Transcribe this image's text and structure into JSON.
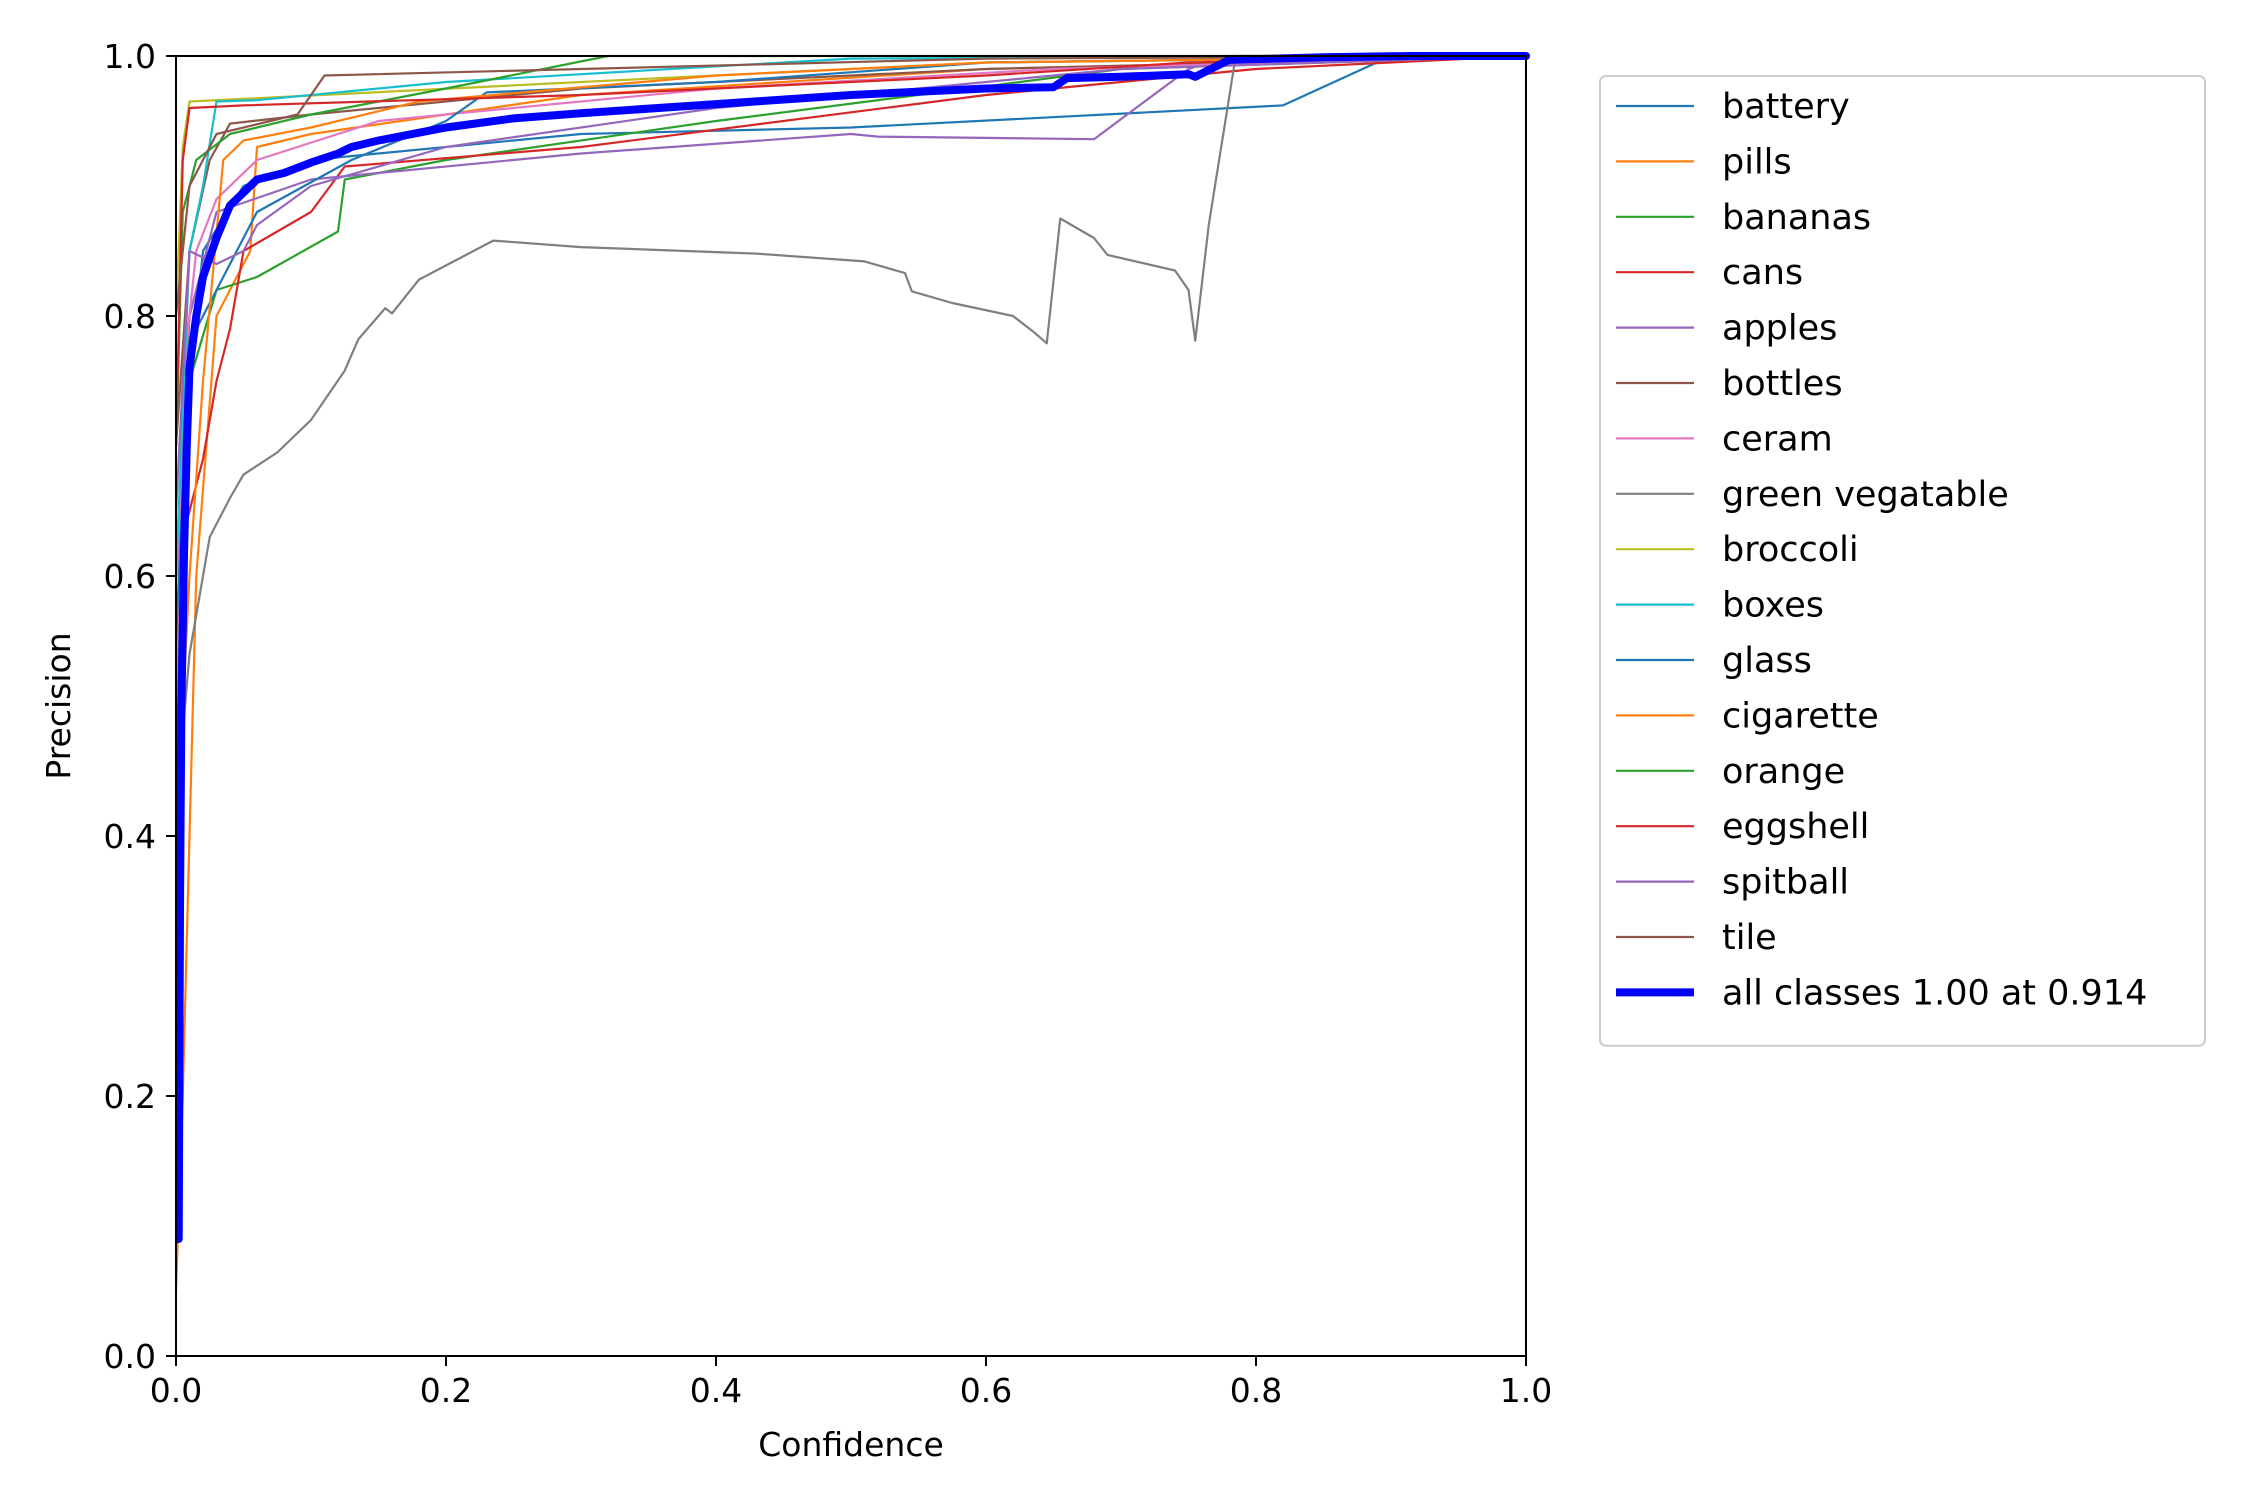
{
  "chart_data": {
    "type": "line",
    "title": "",
    "xlabel": "Confidence",
    "ylabel": "Precision",
    "xlim": [
      0,
      1
    ],
    "ylim": [
      0,
      1
    ],
    "xticks": [
      "0.0",
      "0.2",
      "0.4",
      "0.6",
      "0.8",
      "1.0"
    ],
    "yticks": [
      "0.0",
      "0.2",
      "0.4",
      "0.6",
      "0.8",
      "1.0"
    ],
    "grid": false,
    "legend_position": "outside-right",
    "series": [
      {
        "name": "battery",
        "color": "#1f77b4",
        "x": [
          0,
          0.005,
          0.01,
          0.02,
          0.05,
          0.1,
          0.3,
          0.5,
          0.82,
          0.9,
          1.0
        ],
        "y": [
          0.45,
          0.6,
          0.75,
          0.85,
          0.9,
          0.92,
          0.94,
          0.945,
          0.962,
          1.0,
          1.0
        ]
      },
      {
        "name": "pills",
        "color": "#ff7f0e",
        "x": [
          0,
          0.005,
          0.015,
          0.03,
          0.055,
          0.06,
          0.1,
          0.3,
          0.6,
          1.0
        ],
        "y": [
          0.05,
          0.2,
          0.6,
          0.8,
          0.85,
          0.93,
          0.94,
          0.97,
          0.99,
          1.0
        ]
      },
      {
        "name": "bananas",
        "color": "#2ca02c",
        "x": [
          0,
          0.01,
          0.03,
          0.06,
          0.12,
          0.125,
          0.2,
          0.4,
          0.7,
          1.0
        ],
        "y": [
          0.5,
          0.75,
          0.82,
          0.83,
          0.865,
          0.905,
          0.92,
          0.95,
          0.99,
          1.0
        ]
      },
      {
        "name": "cans",
        "color": "#d62728",
        "x": [
          0,
          0.005,
          0.02,
          0.03,
          0.04,
          0.05,
          0.1,
          0.125,
          0.3,
          0.6,
          0.8,
          1.0
        ],
        "y": [
          0.45,
          0.63,
          0.69,
          0.75,
          0.79,
          0.85,
          0.88,
          0.915,
          0.93,
          0.97,
          0.99,
          1.0
        ]
      },
      {
        "name": "apples",
        "color": "#9467bd",
        "x": [
          0,
          0.01,
          0.03,
          0.1,
          0.3,
          0.5,
          0.52,
          0.68,
          0.75,
          0.78,
          1.0
        ],
        "y": [
          0.6,
          0.8,
          0.88,
          0.905,
          0.925,
          0.94,
          0.938,
          0.936,
          0.99,
          1.0,
          1.0
        ]
      },
      {
        "name": "bottles",
        "color": "#8c564b",
        "x": [
          0,
          0.01,
          0.025,
          0.04,
          0.1,
          0.3,
          0.6,
          1.0
        ],
        "y": [
          0.7,
          0.85,
          0.92,
          0.948,
          0.955,
          0.975,
          0.99,
          1.0
        ]
      },
      {
        "name": "ceram",
        "color": "#e377c2",
        "x": [
          0,
          0.005,
          0.015,
          0.03,
          0.06,
          0.15,
          0.4,
          0.65,
          1.0
        ],
        "y": [
          0.5,
          0.75,
          0.85,
          0.89,
          0.92,
          0.95,
          0.975,
          0.99,
          1.0
        ]
      },
      {
        "name": "green vegatable",
        "color": "#7f7f7f",
        "x": [
          0,
          0.005,
          0.01,
          0.02,
          0.025,
          0.04,
          0.05,
          0.075,
          0.1,
          0.125,
          0.135,
          0.155,
          0.16,
          0.18,
          0.235,
          0.3,
          0.43,
          0.51,
          0.54,
          0.545,
          0.575,
          0.62,
          0.635,
          0.645,
          0.655,
          0.68,
          0.69,
          0.74,
          0.75,
          0.755,
          0.765,
          0.785,
          0.8,
          1.0
        ],
        "y": [
          0.45,
          0.48,
          0.54,
          0.6,
          0.63,
          0.66,
          0.678,
          0.695,
          0.72,
          0.758,
          0.782,
          0.806,
          0.802,
          0.828,
          0.858,
          0.853,
          0.848,
          0.842,
          0.833,
          0.819,
          0.81,
          0.8,
          0.788,
          0.779,
          0.875,
          0.86,
          0.847,
          0.835,
          0.82,
          0.781,
          0.87,
          1.0,
          1.0,
          1.0
        ]
      },
      {
        "name": "broccoli",
        "color": "#bcbd22",
        "x": [
          0,
          0.005,
          0.01,
          0.05,
          0.3,
          0.6,
          1.0
        ],
        "y": [
          0.8,
          0.93,
          0.965,
          0.967,
          0.98,
          0.995,
          1.0
        ]
      },
      {
        "name": "boxes",
        "color": "#17becf",
        "x": [
          0,
          0.01,
          0.02,
          0.03,
          0.06,
          0.2,
          0.5,
          1.0
        ],
        "y": [
          0.6,
          0.85,
          0.9,
          0.965,
          0.966,
          0.98,
          0.998,
          1.0
        ]
      },
      {
        "name": "glass",
        "color": "#1f77b4",
        "x": [
          0,
          0.01,
          0.03,
          0.06,
          0.13,
          0.2,
          0.23,
          0.4,
          0.6,
          1.0
        ],
        "y": [
          0.55,
          0.78,
          0.82,
          0.88,
          0.92,
          0.95,
          0.972,
          0.98,
          0.995,
          1.0
        ]
      },
      {
        "name": "cigarette",
        "color": "#ff7f0e",
        "x": [
          0,
          0.01,
          0.02,
          0.035,
          0.05,
          0.1,
          0.18,
          0.4,
          0.6,
          1.0
        ],
        "y": [
          0.4,
          0.6,
          0.75,
          0.92,
          0.935,
          0.945,
          0.965,
          0.985,
          0.995,
          1.0
        ]
      },
      {
        "name": "orange",
        "color": "#2ca02c",
        "x": [
          0,
          0.005,
          0.015,
          0.04,
          0.1,
          0.2,
          0.32,
          1.0
        ],
        "y": [
          0.7,
          0.88,
          0.92,
          0.94,
          0.955,
          0.975,
          1.0,
          1.0
        ]
      },
      {
        "name": "eggshell",
        "color": "#d62728",
        "x": [
          0,
          0.005,
          0.01,
          0.05,
          0.3,
          0.6,
          0.75,
          1.0
        ],
        "y": [
          0.7,
          0.92,
          0.96,
          0.962,
          0.97,
          0.985,
          0.995,
          1.0
        ]
      },
      {
        "name": "spitball",
        "color": "#9467bd",
        "x": [
          0,
          0.01,
          0.03,
          0.05,
          0.06,
          0.1,
          0.2,
          0.4,
          0.7,
          1.0
        ],
        "y": [
          0.65,
          0.85,
          0.84,
          0.85,
          0.87,
          0.9,
          0.93,
          0.96,
          0.99,
          1.0
        ]
      },
      {
        "name": "tile",
        "color": "#8c564b",
        "x": [
          0,
          0.01,
          0.03,
          0.09,
          0.11,
          0.3,
          0.6,
          1.0
        ],
        "y": [
          0.8,
          0.9,
          0.94,
          0.955,
          0.985,
          0.99,
          0.998,
          1.0
        ]
      },
      {
        "name": "all classes 1.00 at 0.914",
        "color": "#0000ff",
        "thick": true,
        "x": [
          0,
          0.002,
          0.003,
          0.004,
          0.006,
          0.008,
          0.01,
          0.015,
          0.02,
          0.03,
          0.04,
          0.05,
          0.06,
          0.08,
          0.1,
          0.12,
          0.13,
          0.15,
          0.2,
          0.25,
          0.3,
          0.4,
          0.5,
          0.6,
          0.65,
          0.66,
          0.7,
          0.75,
          0.755,
          0.78,
          0.85,
          0.914,
          1.0
        ],
        "y": [
          0.09,
          0.09,
          0.35,
          0.5,
          0.62,
          0.7,
          0.76,
          0.8,
          0.83,
          0.86,
          0.885,
          0.895,
          0.905,
          0.91,
          0.918,
          0.925,
          0.93,
          0.935,
          0.945,
          0.952,
          0.956,
          0.963,
          0.97,
          0.975,
          0.976,
          0.983,
          0.984,
          0.986,
          0.984,
          0.997,
          0.999,
          1.0,
          1.0
        ]
      }
    ]
  }
}
